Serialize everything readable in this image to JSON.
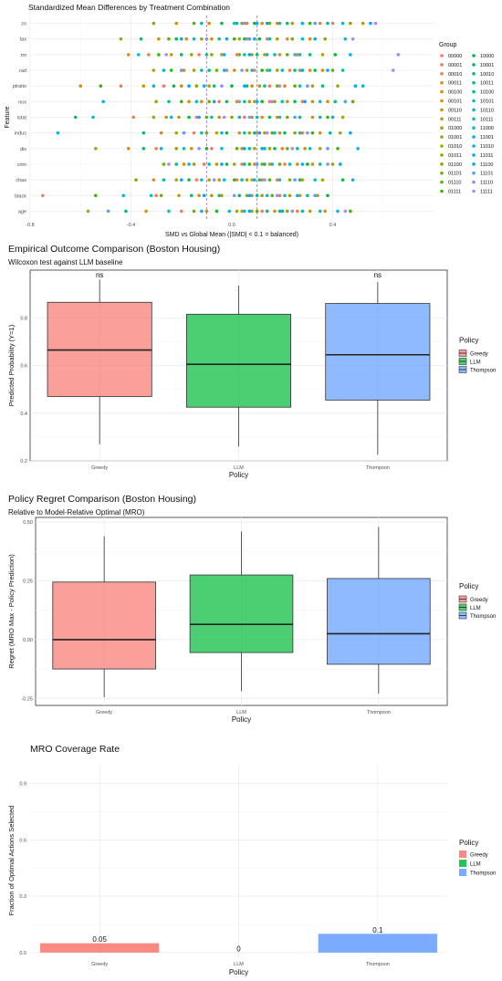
{
  "chart_data": [
    {
      "type": "scatter",
      "title": "Standardized Mean Differences by Treatment Combination",
      "xlabel": "SMD vs Global Mean (|SMD| < 0.1 = balanced)",
      "ylabel": "Feature",
      "xlim": [
        -0.8,
        0.8
      ],
      "x_ticks": [
        "-0.8",
        "-0.4",
        "0.0",
        "0.4"
      ],
      "x_tick_values": [
        -0.8,
        -0.4,
        0.0,
        0.4
      ],
      "reference_lines": [
        -0.1,
        0.1
      ],
      "categories": [
        "zn",
        "tax",
        "rm",
        "rad",
        "ptratio",
        "nox",
        "lstat",
        "indus",
        "dis",
        "crim",
        "chas",
        "black",
        "age"
      ],
      "legend_title": "Group",
      "legend_position": "right",
      "groups": [
        "00000",
        "00001",
        "00010",
        "00011",
        "00100",
        "00101",
        "00110",
        "00111",
        "01000",
        "01001",
        "01010",
        "01011",
        "01100",
        "01101",
        "01110",
        "01111",
        "10000",
        "10001",
        "10010",
        "10011",
        "10100",
        "10101",
        "10110",
        "10111",
        "11000",
        "11001",
        "11010",
        "11011",
        "11100",
        "11101",
        "11110",
        "11111"
      ],
      "group_colors": [
        "#F8766D",
        "#F37B59",
        "#ED8141",
        "#E7861B",
        "#E08B00",
        "#D89000",
        "#CF9400",
        "#C59900",
        "#BB9D00",
        "#AFA100",
        "#A3A500",
        "#95A900",
        "#85AD00",
        "#72B000",
        "#5BB300",
        "#39B600",
        "#00BA38",
        "#00BC59",
        "#00BE70",
        "#00C085",
        "#00C097",
        "#00C1A9",
        "#00C0BA",
        "#00BFC4",
        "#00BCD8",
        "#00B8E7",
        "#00B2F3",
        "#00ABFD",
        "#00A5FF",
        "#529EFF",
        "#8494FF",
        "#A58AFF"
      ],
      "series": [
        {
          "name": "zn",
          "x": [
            0.4,
            0.28,
            0.35,
            0.18,
            0.06,
            -0.09,
            0.12,
            -0.22,
            0.24,
            0.52,
            0.04,
            -0.31,
            0.47,
            0.15,
            -0.15,
            0.31,
            0.09,
            -0.04,
            0.22,
            0.02,
            0.38,
            -0.12,
            0.44,
            0.19,
            0.28,
            0.01,
            0.1,
            0.55,
            0.14,
            0.33,
            0.05,
            0.57
          ]
        },
        {
          "name": "tax",
          "x": [
            0.14,
            0.06,
            0.22,
            -0.18,
            0.31,
            0.09,
            -0.08,
            -0.29,
            0.03,
            0.18,
            -0.44,
            -0.12,
            0.37,
            0.24,
            -0.25,
            0.01,
            0.11,
            -0.22,
            0.05,
            -0.36,
            0.15,
            -0.05,
            0.28,
            -0.15,
            0.09,
            0.45,
            -0.02,
            0.33,
            -0.2,
            0.07,
            -0.1,
            0.48
          ]
        },
        {
          "name": "rm",
          "x": [
            -0.13,
            0.02,
            -0.33,
            0.19,
            -0.41,
            0.08,
            -0.04,
            0.26,
            -0.24,
            0.13,
            0.36,
            -0.16,
            -0.08,
            0.03,
            0.22,
            -0.29,
            0.41,
            -0.2,
            0.1,
            0.31,
            -0.1,
            0.05,
            0.17,
            -0.37,
            0.27,
            0.14,
            -0.03,
            0.47,
            0.07,
            0.25,
            0.66,
            -0.26
          ]
        },
        {
          "name": "rad",
          "x": [
            0.09,
            -0.02,
            0.23,
            0.31,
            -0.19,
            0.36,
            0.01,
            -0.31,
            0.06,
            0.27,
            0.18,
            -0.15,
            0.14,
            -0.06,
            0.4,
            -0.24,
            0.12,
            0.33,
            -0.09,
            0.25,
            0.44,
            -0.12,
            0.2,
            -0.27,
            0.08,
            0.15,
            -0.03,
            0.38,
            0.28,
            -0.2,
            0.04,
            0.64
          ]
        },
        {
          "name": "ptratio",
          "x": [
            -0.27,
            0.15,
            -0.44,
            0.21,
            -0.6,
            0.08,
            -0.2,
            -0.35,
            0.32,
            0.11,
            -0.09,
            0.42,
            -0.14,
            0.18,
            0.25,
            -0.52,
            0.0,
            -0.23,
            0.06,
            0.36,
            -0.07,
            0.13,
            0.52,
            -0.31,
            0.27,
            -0.11,
            0.05,
            0.49,
            -0.17,
            0.3,
            -0.04,
            0.19
          ]
        },
        {
          "name": "nox",
          "x": [
            0.15,
            -0.05,
            0.28,
            0.09,
            0.38,
            -0.17,
            0.02,
            0.22,
            -0.12,
            0.32,
            0.07,
            -0.3,
            0.17,
            -0.09,
            0.48,
            -0.2,
            0.12,
            0.25,
            -0.02,
            0.41,
            -0.25,
            0.05,
            0.2,
            -0.14,
            0.35,
            -0.51,
            0.1,
            0.29,
            -0.07,
            0.45,
            0.03,
            0.16
          ]
        },
        {
          "name": "lstat",
          "x": [
            -0.14,
            0.05,
            -0.39,
            0.12,
            -0.26,
            0.18,
            -0.05,
            0.32,
            -0.21,
            0.08,
            0.44,
            -0.31,
            0.0,
            0.22,
            -0.1,
            0.38,
            -0.17,
            0.15,
            -0.62,
            0.27,
            -0.08,
            0.35,
            0.03,
            -0.24,
            0.19,
            -0.55,
            0.1,
            0.4,
            -0.13,
            0.25,
            0.07,
            -0.03
          ]
        },
        {
          "name": "indus",
          "x": [
            0.1,
            -0.15,
            0.28,
            0.03,
            -0.28,
            0.19,
            0.35,
            -0.06,
            0.13,
            0.43,
            -0.22,
            0.07,
            0.25,
            -0.1,
            0.16,
            0.32,
            -0.02,
            0.21,
            -0.35,
            0.09,
            0.39,
            -0.12,
            0.05,
            0.27,
            -0.69,
            0.17,
            -0.04,
            0.47,
            0.11,
            -0.19,
            0.3,
            0.14
          ]
        },
        {
          "name": "dis",
          "x": [
            -0.08,
            0.12,
            -0.3,
            0.2,
            -0.41,
            0.04,
            0.29,
            -0.16,
            0.09,
            0.35,
            -0.54,
            0.15,
            -0.22,
            0.22,
            0.02,
            0.42,
            -0.1,
            0.17,
            -0.35,
            0.07,
            0.26,
            -0.19,
            0.12,
            0.31,
            -0.04,
            0.5,
            -0.28,
            0.13,
            0.05,
            0.38,
            -0.13,
            0.24
          ]
        },
        {
          "name": "crim",
          "x": [
            0.04,
            -0.11,
            0.21,
            0.09,
            -0.19,
            0.32,
            0.15,
            -0.06,
            0.26,
            0.01,
            0.4,
            -0.15,
            0.12,
            -0.27,
            0.19,
            0.07,
            0.3,
            -0.02,
            0.13,
            -0.22,
            0.35,
            0.05,
            -0.09,
            0.23,
            0.16,
            -0.17,
            0.28,
            0.43,
            -0.04,
            0.1,
            0.38,
            -0.25
          ]
        },
        {
          "name": "chas",
          "x": [
            0.02,
            -0.14,
            0.18,
            -0.31,
            0.12,
            0.28,
            -0.05,
            0.08,
            -0.22,
            0.36,
            0.06,
            -0.09,
            0.23,
            -0.38,
            0.15,
            0.01,
            0.44,
            -0.17,
            0.27,
            0.11,
            -0.27,
            0.04,
            0.33,
            -0.12,
            0.19,
            -0.03,
            0.48,
            0.09,
            -0.2,
            0.25,
            -0.07,
            0.13
          ]
        },
        {
          "name": "black",
          "x": [
            -0.75,
            0.08,
            -0.3,
            0.19,
            -0.13,
            0.27,
            -0.04,
            0.34,
            -0.21,
            0.12,
            -0.08,
            0.23,
            0.06,
            -0.28,
            0.16,
            -0.54,
            0.38,
            0.03,
            -0.16,
            0.3,
            0.1,
            -0.05,
            0.21,
            -0.32,
            0.14,
            -0.43,
            0.26,
            0.07,
            -0.11,
            0.33,
            0.01,
            0.18
          ]
        },
        {
          "name": "age",
          "x": [
            0.12,
            -0.2,
            0.26,
            0.04,
            -0.34,
            0.17,
            0.37,
            -0.1,
            0.08,
            0.31,
            -0.57,
            0.02,
            0.22,
            -0.15,
            0.1,
            0.47,
            -0.06,
            0.2,
            -0.42,
            0.14,
            0.28,
            -0.25,
            0.05,
            0.35,
            -0.01,
            0.42,
            -0.12,
            0.19,
            0.07,
            -0.49,
            0.24,
            0.45
          ]
        }
      ]
    },
    {
      "type": "box",
      "title": "Empirical Outcome Comparison (Boston Housing)",
      "subtitle": "Wilcoxon test against LLM baseline",
      "xlabel": "Policy",
      "ylabel": "Predicted Probability (Y=1)",
      "ylim": [
        0.2,
        1.0
      ],
      "y_ticks": [
        0.2,
        0.4,
        0.6,
        0.8
      ],
      "y_tick_labels": [
        "0.2",
        "0.4",
        "0.6",
        "0.8"
      ],
      "categories": [
        "Greedy",
        "LLM",
        "Thompson"
      ],
      "colors": [
        "#F8766D",
        "#00BA38",
        "#619CFF"
      ],
      "boxes": [
        {
          "name": "Greedy",
          "min": 0.27,
          "q1": 0.47,
          "median": 0.665,
          "q3": 0.865,
          "max": 0.96
        },
        {
          "name": "LLM",
          "min": 0.26,
          "q1": 0.425,
          "median": 0.605,
          "q3": 0.815,
          "max": 0.935
        },
        {
          "name": "Thompson",
          "min": 0.225,
          "q1": 0.455,
          "median": 0.645,
          "q3": 0.86,
          "max": 0.95
        }
      ],
      "annotations": [
        "ns",
        "",
        "ns"
      ],
      "legend_title": "Policy",
      "legend_position": "right"
    },
    {
      "type": "box",
      "title": "Policy Regret Comparison (Boston Housing)",
      "subtitle": "Relative to Model-Relative Optimal (MRO)",
      "xlabel": "Policy",
      "ylabel": "Regret (MRO Max - Policy Prediction)",
      "ylim": [
        -0.28,
        0.52
      ],
      "y_ticks": [
        -0.25,
        0.0,
        0.25,
        0.5
      ],
      "y_tick_labels": [
        "-0.25",
        "0.00",
        "0.25",
        "0.50"
      ],
      "categories": [
        "Greedy",
        "LLM",
        "Thompson"
      ],
      "colors": [
        "#F8766D",
        "#00BA38",
        "#619CFF"
      ],
      "boxes": [
        {
          "name": "Greedy",
          "min": -0.245,
          "q1": -0.125,
          "median": 0.0,
          "q3": 0.245,
          "max": 0.44
        },
        {
          "name": "LLM",
          "min": -0.22,
          "q1": -0.055,
          "median": 0.065,
          "q3": 0.275,
          "max": 0.46
        },
        {
          "name": "Thompson",
          "min": -0.23,
          "q1": -0.105,
          "median": 0.025,
          "q3": 0.26,
          "max": 0.48
        }
      ],
      "legend_title": "Policy",
      "legend_position": "right"
    },
    {
      "type": "bar",
      "title": "MRO Coverage Rate",
      "xlabel": "Policy",
      "ylabel": "Fraction of Optimal Actions Selected",
      "ylim": [
        -0.02,
        1.0
      ],
      "y_ticks": [
        0.0,
        0.3,
        0.6,
        0.9
      ],
      "y_tick_labels": [
        "0.0",
        "0.3",
        "0.6",
        "0.9"
      ],
      "categories": [
        "Greedy",
        "LLM",
        "Thompson"
      ],
      "values": [
        0.05,
        0,
        0.1
      ],
      "data_labels": [
        "0.05",
        "0",
        "0.1"
      ],
      "colors": [
        "#F8766D",
        "#00BA38",
        "#619CFF"
      ],
      "legend_title": "Policy",
      "legend_position": "right"
    }
  ]
}
